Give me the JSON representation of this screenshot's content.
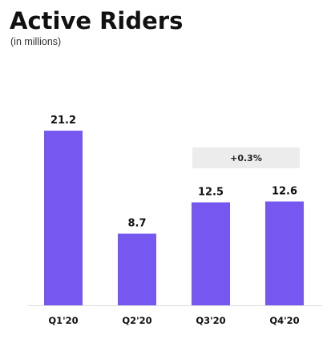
{
  "chart_data": {
    "type": "bar",
    "title": "Active Riders",
    "subtitle": "(in millions)",
    "categories": [
      "Q1'20",
      "Q2'20",
      "Q3'20",
      "Q4'20"
    ],
    "values": [
      21.2,
      8.7,
      12.5,
      12.6
    ],
    "color": "#7657f0",
    "annotation": "+0.3%"
  }
}
